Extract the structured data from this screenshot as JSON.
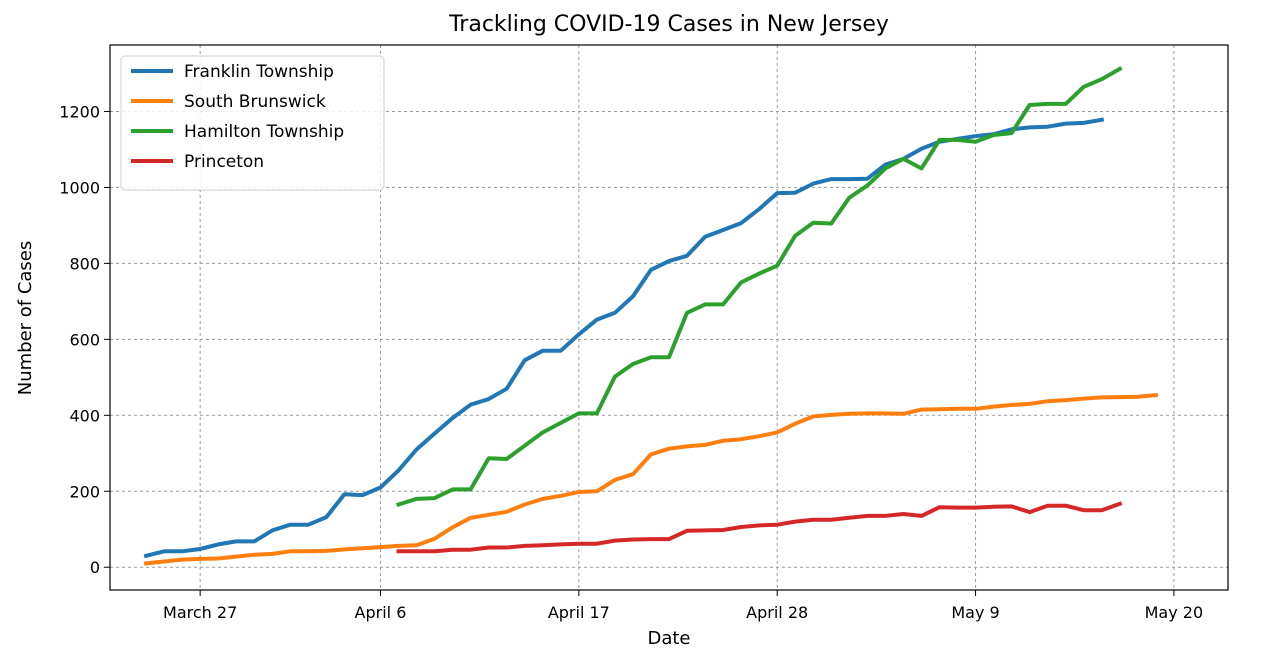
{
  "chart_data": {
    "type": "line",
    "title": "Trackling COVID-19 Cases in New Jersey",
    "xlabel": "Date",
    "ylabel": "Number of Cases",
    "x_start": "2020-03-24",
    "x_ticks": [
      {
        "label": "March 27",
        "date": "2020-03-27"
      },
      {
        "label": "April 6",
        "date": "2020-04-06"
      },
      {
        "label": "April 17",
        "date": "2020-04-17"
      },
      {
        "label": "April 28",
        "date": "2020-04-28"
      },
      {
        "label": "May 9",
        "date": "2020-05-09"
      },
      {
        "label": "May 20",
        "date": "2020-05-20"
      }
    ],
    "xlim": [
      "2020-03-22",
      "2020-05-23"
    ],
    "y_ticks": [
      0,
      200,
      400,
      600,
      800,
      1000,
      1200
    ],
    "ylim": [
      -60,
      1375
    ],
    "grid": true,
    "legend_position": "top-left",
    "series": [
      {
        "name": "Franklin Township",
        "color": "#1f77b4",
        "start_date": "2020-03-24",
        "values": [
          30,
          42,
          42,
          48,
          60,
          68,
          68,
          97,
          112,
          112,
          132,
          192,
          190,
          210,
          255,
          310,
          352,
          393,
          428,
          443,
          470,
          545,
          570,
          570,
          613,
          652,
          670,
          713,
          783,
          806,
          820,
          870,
          888,
          906,
          943,
          985,
          986,
          1010,
          1022,
          1022,
          1023,
          1060,
          1075,
          1102,
          1120,
          1128,
          1135,
          1140,
          1153,
          1158,
          1160,
          1168,
          1170,
          1178
        ]
      },
      {
        "name": "South Brunswick",
        "color": "#ff7f0e",
        "start_date": "2020-03-24",
        "values": [
          10,
          15,
          20,
          22,
          23,
          28,
          33,
          35,
          42,
          42,
          43,
          47,
          50,
          53,
          56,
          58,
          75,
          105,
          130,
          138,
          146,
          165,
          180,
          188,
          198,
          200,
          230,
          245,
          297,
          312,
          318,
          322,
          333,
          337,
          345,
          355,
          378,
          397,
          401,
          404,
          405,
          405,
          404,
          415,
          416,
          417,
          417,
          423,
          427,
          430,
          437,
          440,
          444,
          447,
          448,
          449,
          453
        ]
      },
      {
        "name": "Hamilton Township",
        "color": "#2ca02c",
        "start_date": "2020-04-07",
        "values": [
          165,
          180,
          182,
          205,
          205,
          287,
          285,
          320,
          355,
          380,
          405,
          405,
          502,
          535,
          553,
          553,
          670,
          692,
          692,
          750,
          773,
          794,
          873,
          907,
          905,
          973,
          1005,
          1050,
          1075,
          1050,
          1125,
          1125,
          1120,
          1138,
          1143,
          1217,
          1220,
          1220,
          1265,
          1285,
          1312
        ]
      },
      {
        "name": "Princeton",
        "color": "#d62728",
        "start_date": "2020-04-07",
        "values": [
          42,
          42,
          42,
          46,
          46,
          52,
          52,
          56,
          58,
          60,
          62,
          62,
          70,
          73,
          74,
          74,
          96,
          97,
          98,
          106,
          110,
          112,
          120,
          125,
          125,
          130,
          135,
          135,
          140,
          135,
          158,
          157,
          157,
          159,
          160,
          145,
          162,
          162,
          150,
          150,
          167
        ]
      }
    ]
  }
}
